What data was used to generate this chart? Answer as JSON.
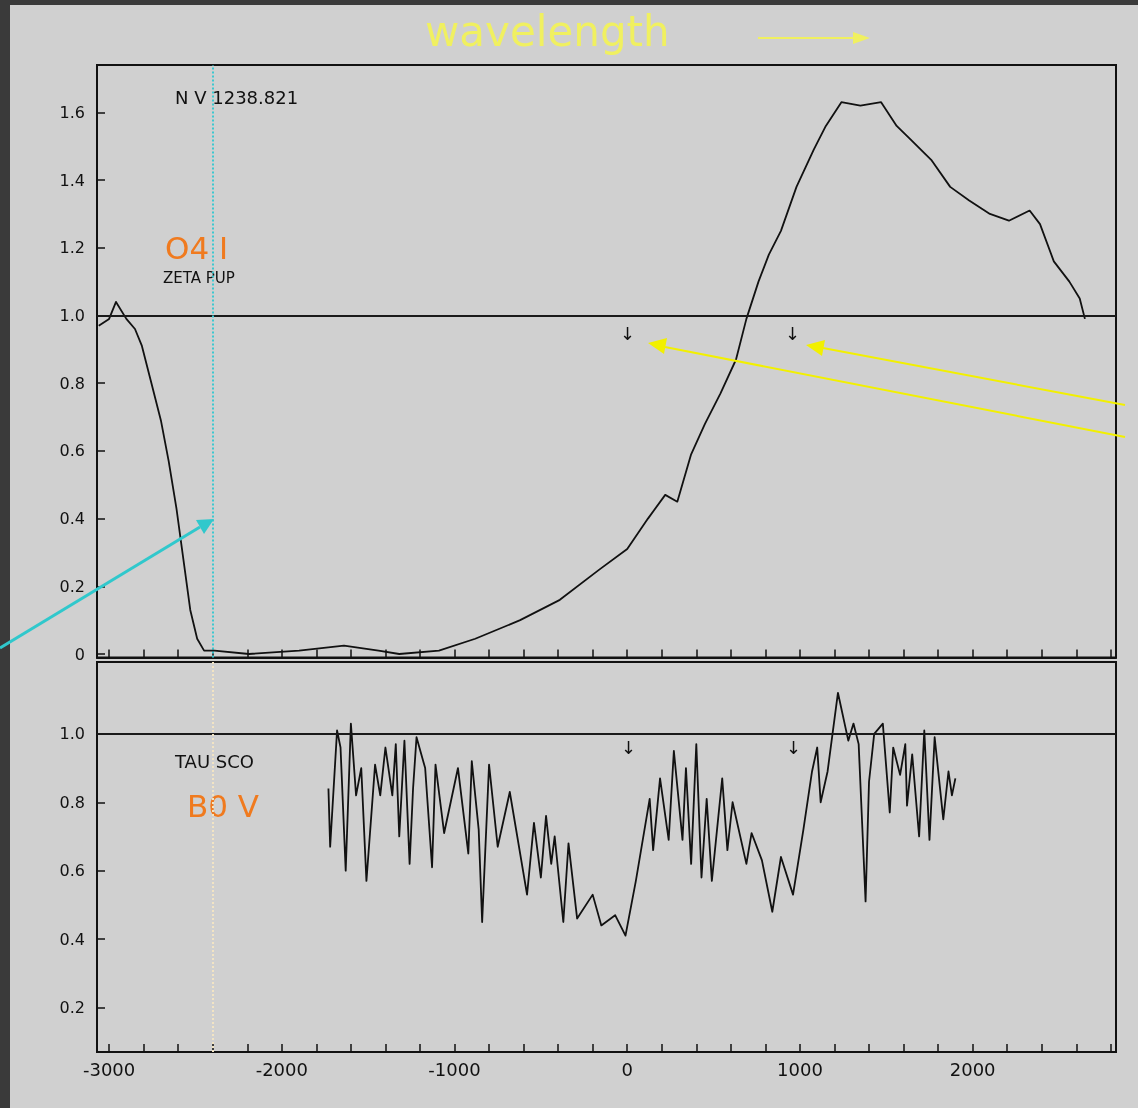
{
  "chart_data": [
    {
      "type": "line",
      "title": "wavelength",
      "tick_labels": "y",
      "annotations": [
        "N V 1238.821",
        "O4 I",
        "ZETA PUP",
        "↓",
        "↓"
      ],
      "xlim": [
        -3070,
        2830
      ],
      "ylim": [
        -0.01,
        1.74
      ],
      "xticks": [
        -3000,
        {
          "value": -2800,
          "label": null
        },
        {
          "value": -2600,
          "label": null
        },
        {
          "value": -2400,
          "label": null
        },
        {
          "value": -2200,
          "label": null
        },
        -2000,
        {
          "value": -1800,
          "label": null
        },
        {
          "value": -1600,
          "label": null
        },
        {
          "value": -1400,
          "label": null
        },
        {
          "value": -1200,
          "label": null
        },
        -1000,
        {
          "value": -800,
          "label": null
        },
        {
          "value": -600,
          "label": null
        },
        {
          "value": -400,
          "label": null
        },
        {
          "value": -200,
          "label": null
        },
        0,
        {
          "value": 200,
          "label": null
        },
        {
          "value": 400,
          "label": null
        },
        {
          "value": 600,
          "label": null
        },
        {
          "value": 800,
          "label": null
        },
        1000,
        {
          "value": 1200,
          "label": null
        },
        {
          "value": 1400,
          "label": null
        },
        {
          "value": 1600,
          "label": null
        },
        {
          "value": 1800,
          "label": null
        },
        2000,
        {
          "value": 2200,
          "label": null
        },
        {
          "value": 2400,
          "label": null
        },
        {
          "value": 2600,
          "label": null
        },
        {
          "value": 2800,
          "label": null
        }
      ],
      "yticks": [
        0,
        0.2,
        0.4,
        0.6,
        0.8,
        {
          "value": 1,
          "label": "1.0"
        },
        1.2,
        1.4,
        1.6
      ],
      "ref_lines": [
        {
          "axis": "y",
          "value": 1,
          "label": null,
          "color": "#1a1a1a",
          "line_style": "solid"
        },
        {
          "axis": "x",
          "value": -2400,
          "label": null,
          "color": "#3cc8d0",
          "line_style": "dotted"
        }
      ],
      "series": [
        {
          "color": "#111111",
          "x": [
            -3060,
            -3000,
            -2960,
            -2900,
            -2850,
            -2810,
            -2760,
            -2700,
            -2655,
            -2610,
            -2570,
            -2530,
            -2490,
            -2450,
            -2390,
            -2190,
            -1900,
            -1640,
            -1440,
            -1320,
            -1090,
            -880,
            -620,
            -390,
            -160,
            0,
            120,
            220,
            290,
            370,
            450,
            540,
            630,
            690,
            760,
            820,
            890,
            980,
            1080,
            1150,
            1240,
            1350,
            1470,
            1560,
            1640,
            1760,
            1870,
            1980,
            2100,
            2210,
            2330,
            2390,
            2470,
            2560,
            2620,
            2650
          ],
          "values": [
            0.97,
            0.99,
            1.04,
            0.99,
            0.96,
            0.91,
            0.81,
            0.69,
            0.57,
            0.43,
            0.28,
            0.13,
            0.045,
            0.01,
            0.01,
            0.0,
            0.01,
            0.025,
            0.01,
            0.0,
            0.01,
            0.045,
            0.1,
            0.16,
            0.25,
            0.31,
            0.4,
            0.47,
            0.45,
            0.59,
            0.68,
            0.77,
            0.87,
            0.99,
            1.1,
            1.18,
            1.25,
            1.38,
            1.49,
            1.56,
            1.63,
            1.62,
            1.63,
            1.56,
            1.52,
            1.46,
            1.38,
            1.34,
            1.3,
            1.28,
            1.31,
            1.27,
            1.16,
            1.1,
            1.05,
            0.99
          ]
        }
      ]
    },
    {
      "type": "line",
      "annotations": [
        "TAU SCO",
        "B0 V",
        "↓",
        "↓"
      ],
      "xlim": [
        -3070,
        2830
      ],
      "ylim": [
        0.07,
        1.21
      ],
      "xticks": [
        -3000,
        {
          "value": -2800,
          "label": null
        },
        {
          "value": -2600,
          "label": null
        },
        {
          "value": -2400,
          "label": null
        },
        {
          "value": -2200,
          "label": null
        },
        -2000,
        {
          "value": -1800,
          "label": null
        },
        {
          "value": -1600,
          "label": null
        },
        {
          "value": -1400,
          "label": null
        },
        {
          "value": -1200,
          "label": null
        },
        -1000,
        {
          "value": -800,
          "label": null
        },
        {
          "value": -600,
          "label": null
        },
        {
          "value": -400,
          "label": null
        },
        {
          "value": -200,
          "label": null
        },
        0,
        {
          "value": 200,
          "label": null
        },
        {
          "value": 400,
          "label": null
        },
        {
          "value": 600,
          "label": null
        },
        {
          "value": 800,
          "label": null
        },
        1000,
        {
          "value": 1200,
          "label": null
        },
        {
          "value": 1400,
          "label": null
        },
        {
          "value": 1600,
          "label": null
        },
        {
          "value": 1800,
          "label": null
        },
        2000,
        {
          "value": 2200,
          "label": null
        },
        {
          "value": 2400,
          "label": null
        },
        {
          "value": 2600,
          "label": null
        },
        {
          "value": 2800,
          "label": null
        }
      ],
      "yticks": [
        0.2,
        0.4,
        0.6,
        0.8,
        {
          "value": 1,
          "label": "1.0"
        }
      ],
      "ref_lines": [
        {
          "axis": "y",
          "value": 1,
          "label": null,
          "color": "#1a1a1a",
          "line_style": "solid"
        },
        {
          "axis": "x",
          "value": -2400,
          "label": null,
          "color": "#f2e4c4",
          "line_style": "dotted"
        }
      ],
      "series": [
        {
          "color": "#111111",
          "x": [
            -1730,
            -1720,
            -1680,
            -1660,
            -1630,
            -1600,
            -1570,
            -1540,
            -1510,
            -1460,
            -1430,
            -1400,
            -1360,
            -1340,
            -1320,
            -1290,
            -1260,
            -1240,
            -1220,
            -1170,
            -1130,
            -1110,
            -1060,
            -980,
            -920,
            -900,
            -860,
            -840,
            -800,
            -750,
            -680,
            -580,
            -540,
            -500,
            -470,
            -440,
            -420,
            -370,
            -340,
            -290,
            -200,
            -150,
            -70,
            -10,
            50,
            130,
            150,
            190,
            240,
            270,
            320,
            340,
            370,
            400,
            430,
            460,
            490,
            550,
            580,
            610,
            690,
            720,
            780,
            840,
            890,
            960,
            1020,
            1070,
            1100,
            1120,
            1160,
            1220,
            1280,
            1310,
            1340,
            1380,
            1400,
            1430,
            1480,
            1520,
            1540,
            1580,
            1610,
            1620,
            1650,
            1690,
            1720,
            1750,
            1780,
            1830,
            1860,
            1880,
            1900
          ],
          "values": [
            0.84,
            0.67,
            1.01,
            0.96,
            0.6,
            1.03,
            0.82,
            0.9,
            0.57,
            0.91,
            0.82,
            0.96,
            0.82,
            0.97,
            0.7,
            0.98,
            0.62,
            0.84,
            0.99,
            0.9,
            0.61,
            0.91,
            0.71,
            0.9,
            0.65,
            0.92,
            0.72,
            0.45,
            0.91,
            0.67,
            0.83,
            0.53,
            0.74,
            0.58,
            0.76,
            0.62,
            0.7,
            0.45,
            0.68,
            0.46,
            0.53,
            0.44,
            0.47,
            0.41,
            0.57,
            0.81,
            0.66,
            0.87,
            0.69,
            0.95,
            0.69,
            0.9,
            0.62,
            0.97,
            0.58,
            0.81,
            0.57,
            0.87,
            0.66,
            0.8,
            0.62,
            0.71,
            0.63,
            0.48,
            0.64,
            0.53,
            0.72,
            0.89,
            0.96,
            0.8,
            0.89,
            1.12,
            0.98,
            1.03,
            0.97,
            0.51,
            0.86,
            1.0,
            1.03,
            0.77,
            0.96,
            0.88,
            0.97,
            0.79,
            0.94,
            0.7,
            1.01,
            0.69,
            0.99,
            0.75,
            0.89,
            0.82,
            0.87
          ]
        }
      ]
    }
  ]
}
